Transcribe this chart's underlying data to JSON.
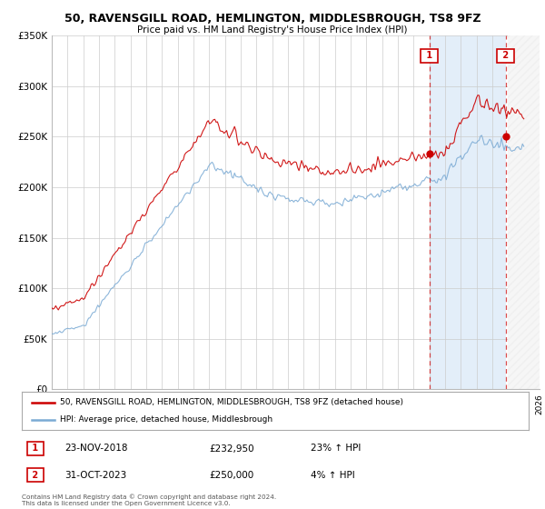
{
  "title": "50, RAVENSGILL ROAD, HEMLINGTON, MIDDLESBROUGH, TS8 9FZ",
  "subtitle": "Price paid vs. HM Land Registry's House Price Index (HPI)",
  "legend_line1": "50, RAVENSGILL ROAD, HEMLINGTON, MIDDLESBROUGH, TS8 9FZ (detached house)",
  "legend_line2": "HPI: Average price, detached house, Middlesbrough",
  "marker1_label": "1",
  "marker1_date": "23-NOV-2018",
  "marker1_price": "£232,950",
  "marker1_hpi": "23% ↑ HPI",
  "marker2_label": "2",
  "marker2_date": "31-OCT-2023",
  "marker2_price": "£250,000",
  "marker2_hpi": "4% ↑ HPI",
  "footer": "Contains HM Land Registry data © Crown copyright and database right 2024.\nThis data is licensed under the Open Government Licence v3.0.",
  "red_color": "#cc0000",
  "blue_color": "#7aaad4",
  "background_color": "#ffffff",
  "grid_color": "#cccccc",
  "sale1_year": 2019.0,
  "sale1_value": 232950,
  "sale2_year": 2023.85,
  "sale2_value": 250000,
  "blue_shade_start": 2019.0,
  "blue_shade_end": 2023.85,
  "future_start": 2024.0,
  "xmin": 1995,
  "xmax": 2026,
  "ymin": 0,
  "ymax": 350000
}
